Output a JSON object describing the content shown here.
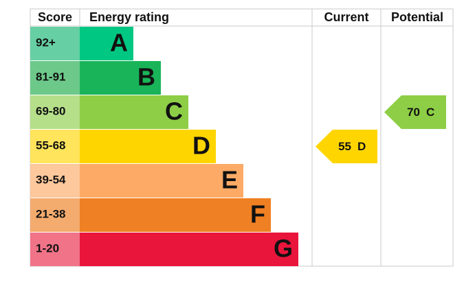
{
  "chart_data": {
    "type": "epc",
    "headers": [
      "Score",
      "Energy rating",
      "Current",
      "Potential"
    ],
    "bands": [
      {
        "range": "92+",
        "letter": "A",
        "min": 92,
        "max": 100,
        "color": "#00c781",
        "light": "#66d0a4"
      },
      {
        "range": "81-91",
        "letter": "B",
        "min": 81,
        "max": 91,
        "color": "#19b459",
        "light": "#6cc98a"
      },
      {
        "range": "69-80",
        "letter": "C",
        "min": 69,
        "max": 80,
        "color": "#8dce46",
        "light": "#b6df8a"
      },
      {
        "range": "55-68",
        "letter": "D",
        "min": 55,
        "max": 68,
        "color": "#ffd500",
        "light": "#ffe45c"
      },
      {
        "range": "39-54",
        "letter": "E",
        "min": 39,
        "max": 54,
        "color": "#fcaa65",
        "light": "#fdc89b"
      },
      {
        "range": "21-38",
        "letter": "F",
        "min": 21,
        "max": 38,
        "color": "#ef8023",
        "light": "#f4ab6e"
      },
      {
        "range": "1-20",
        "letter": "G",
        "min": 1,
        "max": 20,
        "color": "#e9153b",
        "light": "#f07388"
      }
    ],
    "current": {
      "value": 55,
      "rating": "D"
    },
    "potential": {
      "value": 70,
      "rating": "C"
    }
  }
}
